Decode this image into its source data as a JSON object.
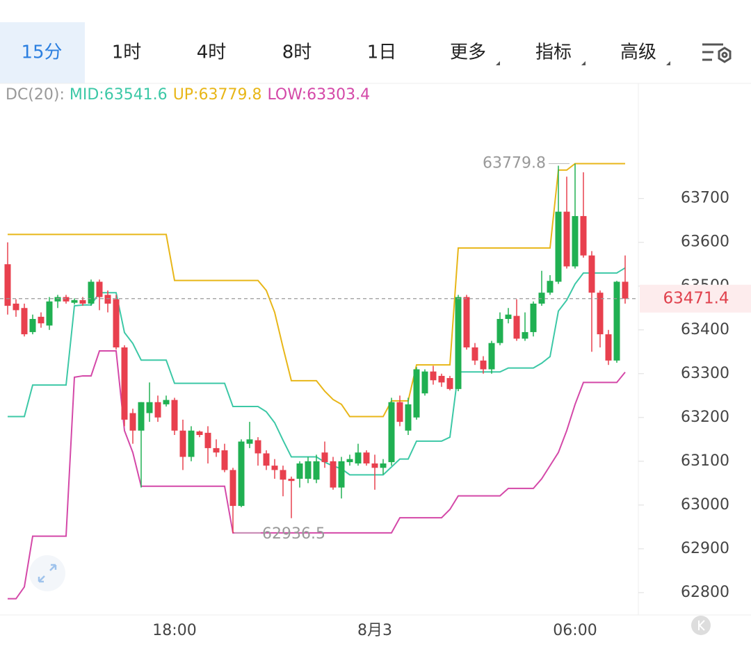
{
  "tabs": [
    "15分",
    "1时",
    "4时",
    "8时",
    "1日",
    "更多",
    "指标",
    "高级"
  ],
  "chart_data": {
    "type": "candlestick",
    "indicator": "DC(20):",
    "categories": [
      null,
      null,
      null,
      null,
      null,
      null,
      null,
      null,
      null,
      null,
      null,
      null,
      null,
      null,
      null,
      null,
      null,
      null,
      null,
      null,
      "18:00",
      null,
      null,
      null,
      null,
      null,
      null,
      null,
      null,
      null,
      null,
      null,
      null,
      null,
      null,
      null,
      null,
      null,
      null,
      null,
      null,
      null,
      null,
      null,
      "8月3",
      null,
      null,
      null,
      null,
      null,
      null,
      null,
      null,
      null,
      null,
      null,
      null,
      null,
      null,
      null,
      null,
      null,
      null,
      null,
      null,
      null,
      null,
      null,
      "06:00",
      null,
      null,
      null,
      null,
      null,
      null
    ],
    "open": [
      63550,
      63460,
      63450,
      63395,
      63430,
      63410,
      63465,
      63475,
      63462,
      63468,
      63460,
      63510,
      63480,
      63470,
      63360,
      63210,
      63170,
      63210,
      63235,
      63230,
      63240,
      63170,
      63110,
      63168,
      63165,
      63130,
      63125,
      63080,
      62998,
      63140,
      63148,
      63118,
      63090,
      63080,
      63060,
      63060,
      63060,
      63058,
      63120,
      63100,
      63040,
      63098,
      63095,
      63120,
      63095,
      63085,
      63098,
      63235,
      63170,
      63200,
      63255,
      63305,
      63295,
      63290,
      63265,
      63475,
      63360,
      63330,
      63310,
      63370,
      63425,
      63432,
      63380,
      63395,
      63460,
      63485,
      63510,
      63670,
      63545,
      63660,
      63570,
      63485,
      63390,
      63330,
      63510
    ],
    "high": [
      63600,
      63470,
      63460,
      63435,
      63440,
      63475,
      63480,
      63480,
      63472,
      63475,
      63515,
      63515,
      63490,
      63480,
      63365,
      63220,
      63235,
      63280,
      63250,
      63250,
      63245,
      63195,
      63180,
      63170,
      63180,
      63150,
      63140,
      63085,
      63150,
      63190,
      63155,
      63125,
      63105,
      63090,
      63065,
      63100,
      63110,
      63115,
      63145,
      63110,
      63110,
      63115,
      63140,
      63125,
      63115,
      63105,
      63245,
      63250,
      63245,
      63315,
      63310,
      63318,
      63300,
      63295,
      63480,
      63480,
      63370,
      63340,
      63375,
      63440,
      63450,
      63470,
      63440,
      63465,
      63535,
      63525,
      63775,
      63750,
      63779.8,
      63760,
      63580,
      63490,
      63400,
      63512,
      63570
    ],
    "low": [
      63435,
      63430,
      63385,
      63390,
      63405,
      63400,
      63450,
      63460,
      63458,
      63455,
      63455,
      63445,
      63440,
      63355,
      63180,
      63140,
      63040,
      63190,
      63190,
      63225,
      63160,
      63080,
      63100,
      63155,
      63095,
      63110,
      63075,
      62936.5,
      62995,
      63130,
      63090,
      63080,
      63060,
      63020,
      62970,
      63040,
      63050,
      63050,
      63085,
      63035,
      63015,
      63090,
      63090,
      63090,
      63035,
      63070,
      63090,
      63180,
      63160,
      63195,
      63250,
      63275,
      63270,
      63262,
      63260,
      63355,
      63320,
      63300,
      63300,
      63365,
      63415,
      63375,
      63375,
      63385,
      63455,
      63480,
      63505,
      63540,
      63540,
      63565,
      63350,
      63360,
      63320,
      63325,
      63460
    ],
    "close": [
      63455,
      63445,
      63390,
      63425,
      63415,
      63465,
      63475,
      63465,
      63468,
      63460,
      63510,
      63475,
      63460,
      63360,
      63195,
      63170,
      63235,
      63235,
      63200,
      63240,
      63170,
      63110,
      63170,
      63160,
      63130,
      63120,
      63080,
      62998,
      63145,
      63150,
      63118,
      63090,
      63080,
      63058,
      63055,
      63095,
      63100,
      63100,
      63098,
      63040,
      63100,
      63105,
      63120,
      63095,
      63085,
      63095,
      63235,
      63190,
      63230,
      63310,
      63305,
      63285,
      63280,
      63265,
      63475,
      63360,
      63330,
      63310,
      63370,
      63425,
      63435,
      63380,
      63395,
      63460,
      63485,
      63512,
      63670,
      63545,
      63660,
      63570,
      63485,
      63390,
      63330,
      63510,
      63471.4
    ],
    "up_color": "#20b052",
    "down_color": "#e8404e",
    "series": [
      {
        "name": "MID:63541.6",
        "color": "#3cc8a6",
        "values": [
          63202,
          63202,
          63202,
          63274,
          63274,
          63274,
          63274,
          63274,
          63455,
          63457,
          63457,
          63485,
          63485,
          63485,
          63394,
          63369,
          63331,
          63331,
          63331,
          63331,
          63278,
          63278,
          63278,
          63278,
          63278,
          63278,
          63278,
          63225,
          63225,
          63225,
          63225,
          63213,
          63188,
          63148,
          63110,
          63110,
          63110,
          63110,
          63098,
          63089,
          63083,
          63069,
          63069,
          63069,
          63069,
          63069,
          63087,
          63105,
          63105,
          63146,
          63146,
          63146,
          63146,
          63155,
          63304,
          63304,
          63304,
          63304,
          63304,
          63304,
          63313,
          63313,
          63313,
          63313,
          63324,
          63339,
          63443,
          63468,
          63505,
          63530,
          63530,
          63530,
          63530,
          63530,
          63541.6
        ]
      },
      {
        "name": "UP:63779.8",
        "color": "#e8b618",
        "values": [
          63618,
          63618,
          63618,
          63618,
          63618,
          63618,
          63618,
          63618,
          63618,
          63618,
          63618,
          63618,
          63618,
          63618,
          63618,
          63618,
          63618,
          63618,
          63618,
          63618,
          63513,
          63513,
          63513,
          63513,
          63513,
          63513,
          63513,
          63513,
          63513,
          63513,
          63513,
          63490,
          63440,
          63360,
          63284,
          63284,
          63284,
          63284,
          63260,
          63241,
          63230,
          63202,
          63202,
          63202,
          63202,
          63202,
          63238,
          63238,
          63238,
          63320,
          63320,
          63320,
          63320,
          63320,
          63587,
          63587,
          63587,
          63587,
          63587,
          63587,
          63587,
          63587,
          63587,
          63587,
          63587,
          63587,
          63765,
          63765,
          63779.8,
          63779.8,
          63779.8,
          63779.8,
          63779.8,
          63779.8,
          63779.8
        ]
      },
      {
        "name": "LOW:63303.4",
        "color": "#d448a8",
        "values": [
          62786,
          62786,
          62813,
          62929,
          62929,
          62929,
          62929,
          62929,
          63292,
          63295,
          63295,
          63352,
          63352,
          63352,
          63170,
          63120,
          63043,
          63043,
          63043,
          63043,
          63043,
          63043,
          63043,
          63043,
          63043,
          63043,
          63043,
          62936.5,
          62936.5,
          62936.5,
          62936.5,
          62936.5,
          62936.5,
          62936.5,
          62936.5,
          62936.5,
          62936.5,
          62936.5,
          62936.5,
          62936.5,
          62936.5,
          62936.5,
          62936.5,
          62936.5,
          62936.5,
          62936.5,
          62936.5,
          62971,
          62971,
          62971,
          62971,
          62971,
          62971,
          62990,
          63021,
          63021,
          63021,
          63021,
          63021,
          63021,
          63038,
          63038,
          63038,
          63038,
          63060,
          63090,
          63120,
          63170,
          63230,
          63280,
          63280,
          63280,
          63280,
          63280,
          63303.4
        ]
      }
    ],
    "max_label": "63779.8",
    "min_label": "62936.5",
    "last_price_label": "63471.4",
    "ylim": [
      62749,
      63963
    ],
    "yticks": [
      62800,
      62900,
      63000,
      63100,
      63200,
      63300,
      63400,
      63500,
      63600,
      63700
    ],
    "grid": false
  }
}
